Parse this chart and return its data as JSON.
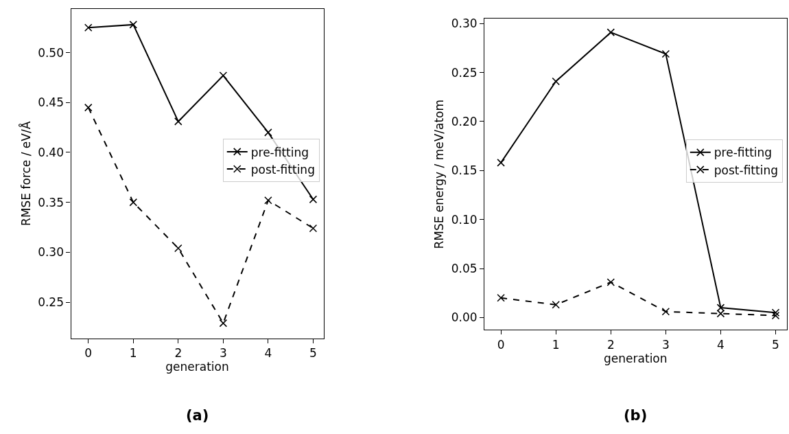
{
  "chart_data": [
    {
      "type": "line",
      "xlabel": "generation",
      "ylabel": "RMSE force / eV/Å",
      "x": [
        0,
        1,
        2,
        3,
        4,
        5
      ],
      "xlim": [
        -0.385,
        5.23
      ],
      "xticks": [
        0,
        1,
        2,
        3,
        4,
        5
      ],
      "ylim": [
        0.2136,
        0.544
      ],
      "yticks": [
        {
          "value": 0.25,
          "label": "0.25"
        },
        {
          "value": 0.3,
          "label": "0.30"
        },
        {
          "value": 0.35,
          "label": "0.35"
        },
        {
          "value": 0.4,
          "label": "0.40"
        },
        {
          "value": 0.45,
          "label": "0.45"
        },
        {
          "value": 0.5,
          "label": "0.50"
        }
      ],
      "marker": "cross",
      "legend": "right",
      "annotations": [
        "(a)"
      ],
      "series": [
        {
          "name": "pre-fitting",
          "color": "#000000",
          "line_style": "solid",
          "values": [
            0.525,
            0.528,
            0.431,
            0.477,
            0.42,
            0.353
          ]
        },
        {
          "name": "post-fitting",
          "color": "#000000",
          "line_style": "dashed",
          "values": [
            0.445,
            0.35,
            0.304,
            0.229,
            0.352,
            0.324
          ]
        }
      ]
    },
    {
      "type": "line",
      "xlabel": "generation",
      "ylabel": "RMSE energy / meV/atom",
      "x": [
        0,
        1,
        2,
        3,
        4,
        5
      ],
      "xlim": [
        -0.3,
        5.2
      ],
      "xticks": [
        0,
        1,
        2,
        3,
        4,
        5
      ],
      "ylim": [
        -0.0126,
        0.305
      ],
      "yticks": [
        {
          "value": 0.0,
          "label": "0.00"
        },
        {
          "value": 0.05,
          "label": "0.05"
        },
        {
          "value": 0.1,
          "label": "0.10"
        },
        {
          "value": 0.15,
          "label": "0.15"
        },
        {
          "value": 0.2,
          "label": "0.20"
        },
        {
          "value": 0.25,
          "label": "0.25"
        },
        {
          "value": 0.3,
          "label": "0.30"
        }
      ],
      "marker": "cross",
      "legend": "right",
      "annotations": [
        "(b)"
      ],
      "series": [
        {
          "name": "pre-fitting",
          "color": "#000000",
          "line_style": "solid",
          "values": [
            0.158,
            0.241,
            0.291,
            0.269,
            0.01,
            0.005
          ]
        },
        {
          "name": "post-fitting",
          "color": "#000000",
          "line_style": "dashed",
          "values": [
            0.02,
            0.013,
            0.036,
            0.006,
            0.004,
            0.002
          ]
        }
      ]
    }
  ]
}
